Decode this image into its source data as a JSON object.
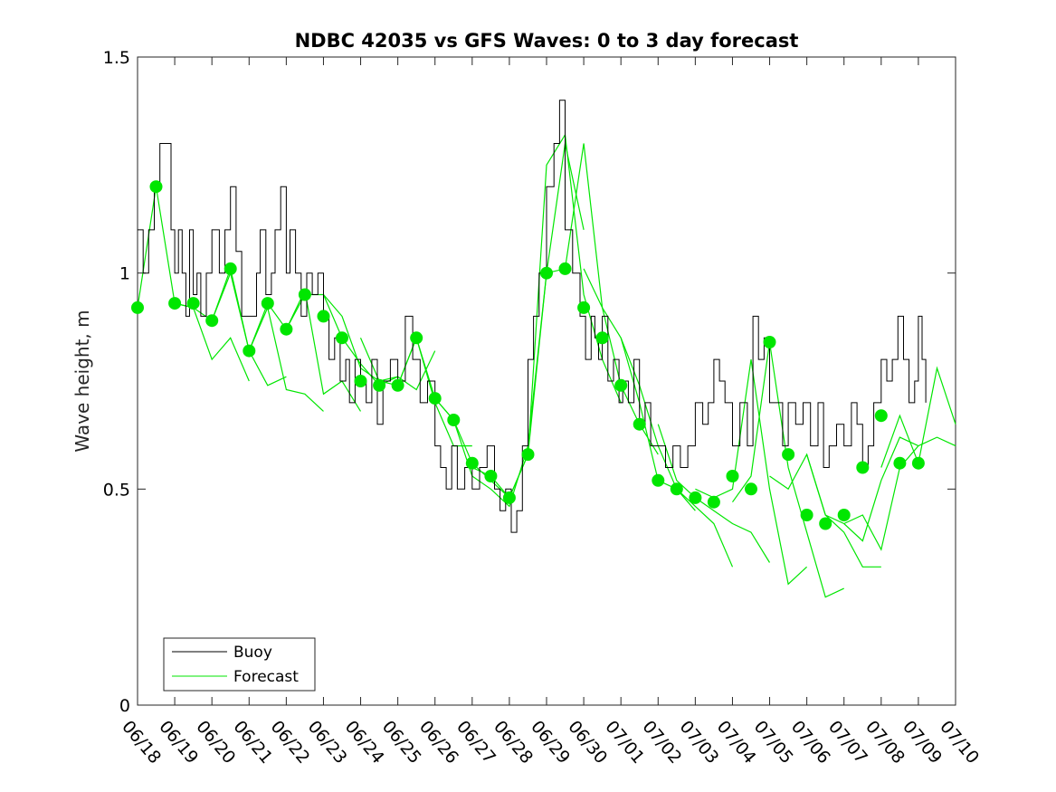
{
  "chart_data": {
    "type": "line",
    "title": "NDBC 42035 vs GFS Waves: 0 to 3 day forecast",
    "xlabel": "",
    "ylabel": "Wave height, m",
    "ylim": [
      0,
      1.5
    ],
    "xlim": [
      0,
      22
    ],
    "y_ticks": [
      "0",
      "0.5",
      "1",
      "1.5"
    ],
    "y_tick_values": [
      0,
      0.5,
      1,
      1.5
    ],
    "x_ticks": [
      "06/18",
      "06/19",
      "06/20",
      "06/21",
      "06/22",
      "06/23",
      "06/24",
      "06/25",
      "06/26",
      "06/27",
      "06/28",
      "06/29",
      "06/30",
      "07/01",
      "07/02",
      "07/03",
      "07/04",
      "07/05",
      "07/06",
      "07/07",
      "07/08",
      "07/09",
      "07/10"
    ],
    "grid": false,
    "legend": {
      "placement": "bottom-left",
      "entries": [
        "Buoy",
        "Forecast"
      ]
    },
    "colors": {
      "buoy": "#000000",
      "forecast": "#00e600"
    },
    "series": [
      {
        "name": "Buoy",
        "x": [
          0,
          0.15,
          0.3,
          0.45,
          0.6,
          0.8,
          0.9,
          1.0,
          1.1,
          1.2,
          1.3,
          1.4,
          1.5,
          1.6,
          1.7,
          1.85,
          2.0,
          2.2,
          2.35,
          2.5,
          2.65,
          2.8,
          3.0,
          3.2,
          3.3,
          3.45,
          3.6,
          3.7,
          3.85,
          4.0,
          4.1,
          4.25,
          4.4,
          4.55,
          4.7,
          4.85,
          5.0,
          5.15,
          5.3,
          5.45,
          5.6,
          5.7,
          5.85,
          6.0,
          6.15,
          6.3,
          6.45,
          6.6,
          6.8,
          7.0,
          7.2,
          7.4,
          7.6,
          7.8,
          8.0,
          8.15,
          8.3,
          8.45,
          8.6,
          8.8,
          9.0,
          9.2,
          9.4,
          9.6,
          9.75,
          9.9,
          10.05,
          10.2,
          10.35,
          10.5,
          10.65,
          10.8,
          11.0,
          11.2,
          11.35,
          11.5,
          11.7,
          11.9,
          12.05,
          12.2,
          12.3,
          12.4,
          12.5,
          12.65,
          12.8,
          12.95,
          13.05,
          13.2,
          13.35,
          13.5,
          13.65,
          13.8,
          14.0,
          14.2,
          14.4,
          14.6,
          14.8,
          15.0,
          15.2,
          15.35,
          15.5,
          15.65,
          15.8,
          16.0,
          16.2,
          16.4,
          16.55,
          16.7,
          16.85,
          17.0,
          17.2,
          17.35,
          17.5,
          17.7,
          17.9,
          18.1,
          18.3,
          18.45,
          18.6,
          18.8,
          19.0,
          19.2,
          19.35,
          19.5,
          19.65,
          19.8,
          20.0,
          20.15,
          20.3,
          20.45,
          20.6,
          20.75,
          20.9,
          21.0,
          21.1,
          21.2
        ],
        "values": [
          1.1,
          1.0,
          1.1,
          1.2,
          1.3,
          1.3,
          1.1,
          1.0,
          1.1,
          1.0,
          0.9,
          1.1,
          0.95,
          1.0,
          0.9,
          1.0,
          1.1,
          1.0,
          1.1,
          1.2,
          1.05,
          0.9,
          0.9,
          1.0,
          1.1,
          0.95,
          1.0,
          1.1,
          1.2,
          1.0,
          1.1,
          1.0,
          0.9,
          1.0,
          0.95,
          1.0,
          0.9,
          0.8,
          0.85,
          0.75,
          0.8,
          0.7,
          0.8,
          0.75,
          0.7,
          0.8,
          0.65,
          0.75,
          0.8,
          0.75,
          0.9,
          0.8,
          0.7,
          0.75,
          0.6,
          0.55,
          0.5,
          0.6,
          0.5,
          0.55,
          0.5,
          0.55,
          0.6,
          0.5,
          0.45,
          0.5,
          0.4,
          0.45,
          0.6,
          0.8,
          0.9,
          1.0,
          1.2,
          1.3,
          1.4,
          1.1,
          1.0,
          0.9,
          0.8,
          0.9,
          0.85,
          0.8,
          0.9,
          0.75,
          0.8,
          0.7,
          0.75,
          0.7,
          0.8,
          0.65,
          0.7,
          0.6,
          0.6,
          0.55,
          0.6,
          0.55,
          0.6,
          0.7,
          0.65,
          0.7,
          0.8,
          0.75,
          0.7,
          0.6,
          0.7,
          0.6,
          0.9,
          0.8,
          0.85,
          0.7,
          0.7,
          0.6,
          0.7,
          0.65,
          0.7,
          0.6,
          0.7,
          0.55,
          0.6,
          0.65,
          0.6,
          0.7,
          0.65,
          0.55,
          0.6,
          0.7,
          0.8,
          0.75,
          0.8,
          0.9,
          0.8,
          0.7,
          0.75,
          0.9,
          0.8,
          0.7
        ]
      },
      {
        "name": "Forecast",
        "lines": [
          {
            "x": [
              0,
              0.5,
              1,
              1.5,
              2,
              2.5,
              3
            ],
            "values": [
              0.92,
              1.2,
              0.93,
              0.92,
              0.8,
              0.85,
              0.75
            ]
          },
          {
            "x": [
              1,
              1.5,
              2,
              2.5,
              3,
              3.5,
              4
            ],
            "values": [
              0.93,
              0.92,
              0.89,
              1.0,
              0.82,
              0.74,
              0.76
            ]
          },
          {
            "x": [
              2,
              2.5,
              3,
              3.5,
              4,
              4.5,
              5
            ],
            "values": [
              0.89,
              1.01,
              0.82,
              0.92,
              0.73,
              0.72,
              0.68
            ]
          },
          {
            "x": [
              3,
              3.5,
              4,
              4.5,
              5,
              5.5,
              6
            ],
            "values": [
              0.82,
              0.93,
              0.87,
              0.96,
              0.72,
              0.75,
              0.68
            ]
          },
          {
            "x": [
              4,
              4.5,
              5,
              5.5,
              6,
              6.5,
              7
            ],
            "values": [
              0.87,
              0.95,
              0.95,
              0.85,
              0.79,
              0.74,
              0.76
            ]
          },
          {
            "x": [
              5,
              5.5,
              6,
              6.5,
              7,
              7.5,
              8
            ],
            "values": [
              0.95,
              0.9,
              0.78,
              0.75,
              0.76,
              0.73,
              0.82
            ]
          },
          {
            "x": [
              6,
              6.5,
              7,
              7.5,
              8,
              8.5,
              9
            ],
            "values": [
              0.85,
              0.75,
              0.74,
              0.85,
              0.7,
              0.6,
              0.6
            ]
          },
          {
            "x": [
              7,
              7.5,
              8,
              8.5,
              9,
              9.5,
              10
            ],
            "values": [
              0.74,
              0.85,
              0.71,
              0.66,
              0.56,
              0.52,
              0.48
            ]
          },
          {
            "x": [
              8,
              8.5,
              9,
              9.5,
              10,
              10.5,
              11
            ],
            "values": [
              0.71,
              0.66,
              0.53,
              0.5,
              0.46,
              0.6,
              1.0
            ]
          },
          {
            "x": [
              9,
              9.5,
              10,
              10.5,
              11,
              11.5,
              12
            ],
            "values": [
              0.55,
              0.53,
              0.48,
              0.58,
              1.0,
              1.3,
              1.1
            ]
          },
          {
            "x": [
              10,
              10.5,
              11,
              11.5,
              12,
              12.5,
              13
            ],
            "values": [
              0.48,
              0.58,
              1.25,
              1.32,
              0.95,
              0.8,
              0.7
            ]
          },
          {
            "x": [
              11,
              11.5,
              12,
              12.5,
              13,
              13.5,
              14
            ],
            "values": [
              1.0,
              1.01,
              1.3,
              0.92,
              0.74,
              0.65,
              0.58
            ]
          },
          {
            "x": [
              12,
              12.5,
              13,
              13.5,
              14,
              14.5,
              15
            ],
            "values": [
              1.01,
              0.92,
              0.85,
              0.7,
              0.52,
              0.5,
              0.45
            ]
          },
          {
            "x": [
              13,
              13.5,
              14,
              14.5,
              15,
              15.5,
              16
            ],
            "values": [
              0.85,
              0.74,
              0.6,
              0.5,
              0.46,
              0.42,
              0.32
            ]
          },
          {
            "x": [
              14,
              14.5,
              15,
              15.5,
              16,
              16.5,
              17
            ],
            "values": [
              0.65,
              0.52,
              0.48,
              0.45,
              0.42,
              0.4,
              0.33
            ]
          },
          {
            "x": [
              15,
              15.5,
              16,
              16.5,
              17,
              17.5,
              18
            ],
            "values": [
              0.5,
              0.48,
              0.5,
              0.8,
              0.5,
              0.28,
              0.32
            ]
          },
          {
            "x": [
              16,
              16.5,
              17,
              17.5,
              18,
              18.5,
              19
            ],
            "values": [
              0.47,
              0.53,
              0.84,
              0.55,
              0.4,
              0.25,
              0.27
            ]
          },
          {
            "x": [
              17,
              17.5,
              18,
              18.5,
              19,
              19.5,
              20
            ],
            "values": [
              0.53,
              0.5,
              0.58,
              0.44,
              0.4,
              0.32,
              0.32
            ]
          },
          {
            "x": [
              18,
              18.5,
              19,
              19.5,
              20,
              20.5,
              21
            ],
            "values": [
              0.58,
              0.44,
              0.42,
              0.38,
              0.52,
              0.62,
              0.6
            ]
          },
          {
            "x": [
              19,
              19.5,
              20,
              20.5,
              21,
              21.5,
              22
            ],
            "values": [
              0.42,
              0.44,
              0.36,
              0.55,
              0.6,
              0.62,
              0.6
            ]
          },
          {
            "x": [
              20,
              20.5,
              21,
              21.5,
              22
            ],
            "values": [
              0.55,
              0.67,
              0.56,
              0.78,
              0.65
            ]
          }
        ],
        "markers": {
          "x": [
            0,
            0.5,
            1,
            1.5,
            2,
            2.5,
            3,
            3.5,
            4,
            4.5,
            5,
            5.5,
            6,
            6.5,
            7,
            7.5,
            8,
            8.5,
            9,
            9.5,
            10,
            10.5,
            11,
            11.5,
            12,
            12.5,
            13,
            13.5,
            14,
            14.5,
            15,
            15.5,
            16,
            16.5,
            17,
            17.5,
            18,
            18.5,
            19,
            19.5,
            20,
            20.5,
            21
          ],
          "values": [
            0.92,
            1.2,
            0.93,
            0.93,
            0.89,
            1.01,
            0.82,
            0.93,
            0.87,
            0.95,
            0.9,
            0.85,
            0.75,
            0.74,
            0.74,
            0.85,
            0.71,
            0.66,
            0.56,
            0.53,
            0.48,
            0.58,
            1.0,
            1.01,
            0.92,
            0.85,
            0.74,
            0.65,
            0.52,
            0.5,
            0.48,
            0.47,
            0.53,
            0.5,
            0.84,
            0.58,
            0.44,
            0.42,
            0.44,
            0.55,
            0.67,
            0.56,
            0.56
          ]
        }
      }
    ]
  }
}
